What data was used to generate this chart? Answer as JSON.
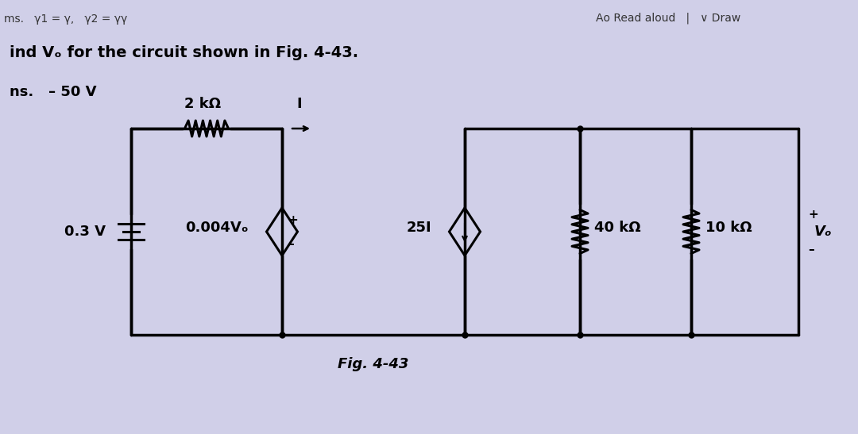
{
  "bg_color": "#d0cfe8",
  "title_text": "ind Vₒ for the circuit shown in Fig. 4-43.",
  "ans_text": "ns.   – 50 V",
  "fig_label": "Fig. 4-43",
  "circuit": {
    "vs_label": "0.3 V",
    "r1_label": "2 kΩ",
    "current_label": "I",
    "vcvs_label": "0.004Vₒ",
    "cccs_label": "25I",
    "r2_label": "40 kΩ",
    "r3_label": "10 kΩ",
    "vo_label": "Vₒ"
  }
}
